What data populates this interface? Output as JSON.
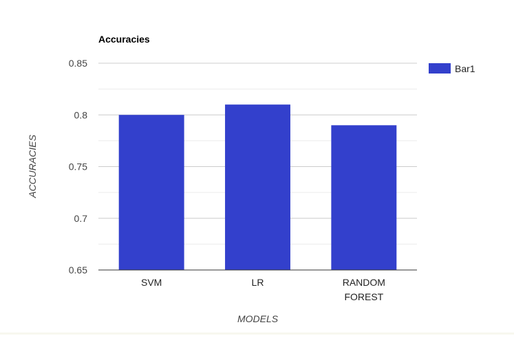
{
  "chart_data": {
    "type": "bar",
    "title": "Accuracies",
    "xlabel": "MODELS",
    "ylabel": "ACCURACIES",
    "categories": [
      [
        "SVM"
      ],
      [
        "LR"
      ],
      [
        "RANDOM",
        "FOREST"
      ]
    ],
    "series": [
      {
        "name": "Bar1",
        "color": "#3340cc",
        "values": [
          0.8,
          0.81,
          0.79
        ]
      }
    ],
    "ylim": [
      0.65,
      0.85
    ],
    "y_ticks": [
      0.65,
      0.7,
      0.75,
      0.8,
      0.85
    ],
    "y_tick_labels": [
      "0.65",
      "0.7",
      "0.75",
      "0.8",
      "0.85"
    ],
    "minor_gridlines": true,
    "grid": true,
    "legend_position": "right",
    "colors": {
      "gridline": "#cccccc",
      "minor_gridline": "#ebebeb",
      "text": "#444444",
      "title": "#000000"
    }
  }
}
